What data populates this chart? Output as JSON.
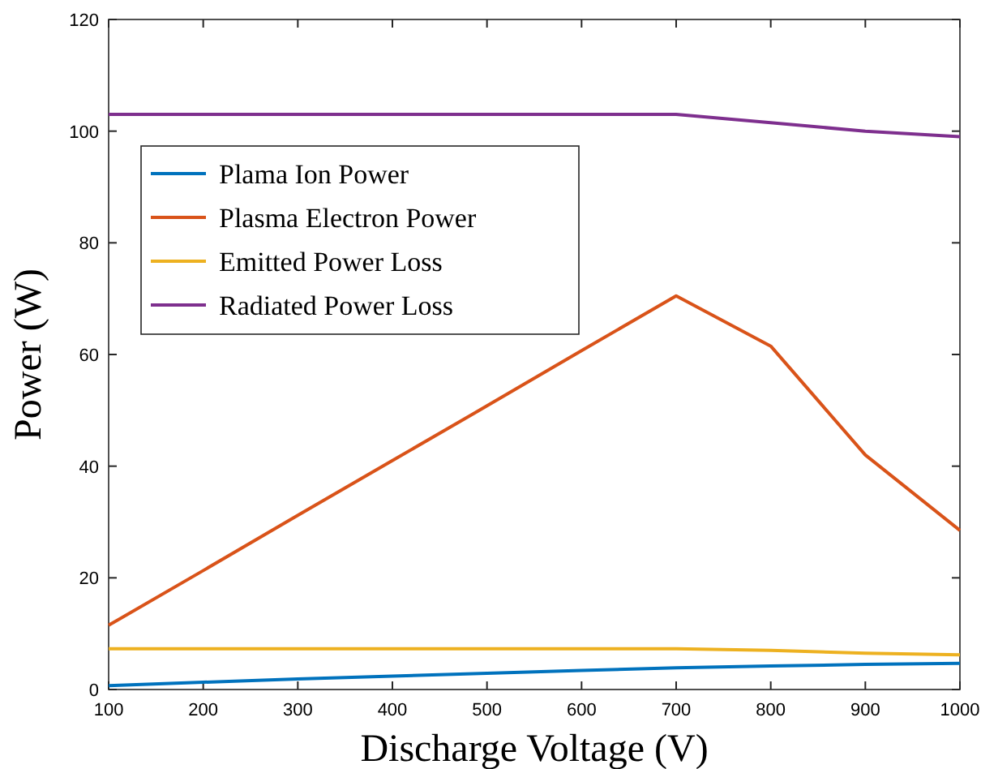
{
  "chart_data": {
    "type": "line",
    "xlabel": "Discharge Voltage (V)",
    "ylabel": "Power (W)",
    "x": [
      100,
      200,
      300,
      400,
      500,
      600,
      700,
      800,
      900,
      1000
    ],
    "xlim": [
      100,
      1000
    ],
    "xticks": [
      100,
      200,
      300,
      400,
      500,
      600,
      700,
      800,
      900,
      1000
    ],
    "ylim": [
      0,
      120
    ],
    "yticks": [
      0,
      20,
      40,
      60,
      80,
      100,
      120
    ],
    "legend": "top left",
    "grid": false,
    "series": [
      {
        "name": "Plama Ion Power",
        "color": "#0072bd",
        "values": [
          0.7,
          1.3,
          1.9,
          2.4,
          2.9,
          3.4,
          3.9,
          4.2,
          4.5,
          4.7
        ]
      },
      {
        "name": "Plasma Electron Power",
        "color": "#d95319",
        "values": [
          11.5,
          21.3,
          31.2,
          41,
          50.8,
          60.7,
          70.5,
          61.5,
          42,
          28.5
        ]
      },
      {
        "name": "Emitted Power Loss",
        "color": "#edb120",
        "values": [
          7.3,
          7.3,
          7.3,
          7.3,
          7.3,
          7.3,
          7.3,
          7,
          6.5,
          6.2
        ]
      },
      {
        "name": "Radiated Power Loss",
        "color": "#7e2f8e",
        "values": [
          103,
          103,
          103,
          103,
          103,
          103,
          103,
          101.5,
          100,
          99
        ]
      }
    ]
  }
}
